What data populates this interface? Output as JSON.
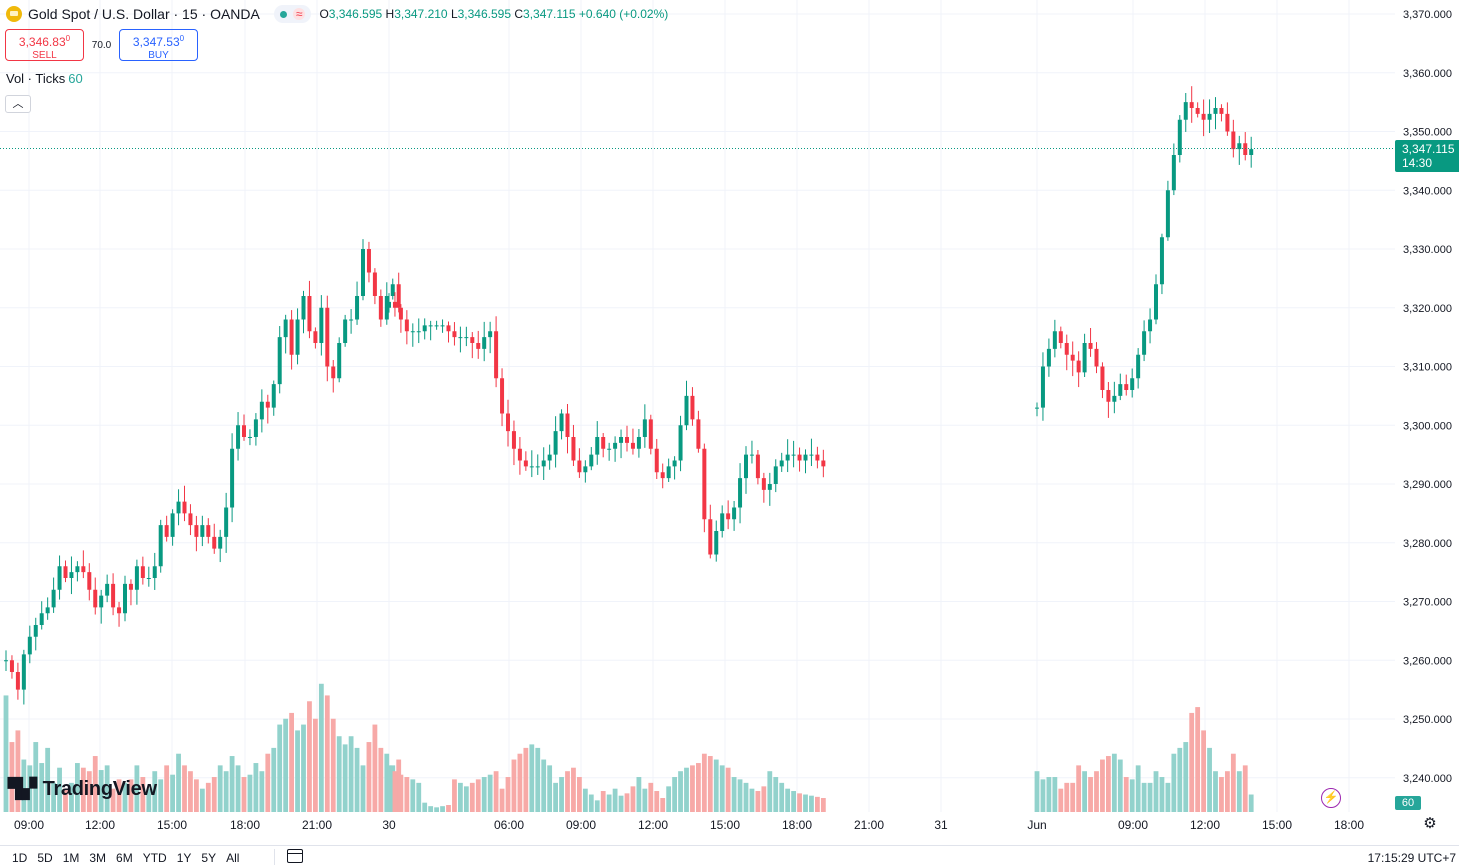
{
  "header": {
    "symbol_title": "Gold Spot / U.S. Dollar · 15 · OANDA",
    "ohlc": {
      "o_label": "O",
      "o": "3,346.595",
      "h_label": "H",
      "h": "3,347.210",
      "l_label": "L",
      "l": "3,346.595",
      "c_label": "C",
      "c": "3,347.115",
      "change": "+0.640 (+0.02%)"
    }
  },
  "trade": {
    "sell_price": "3,346.83",
    "sell_sup": "0",
    "sell_label": "SELL",
    "spread": "70.0",
    "buy_price": "3,347.53",
    "buy_sup": "0",
    "buy_label": "BUY"
  },
  "volume_legend": {
    "name": "Vol · Ticks",
    "period": "60"
  },
  "collapse_icon": "chevron-up-icon",
  "last_price_label": {
    "price": "3,347.115",
    "countdown": "14:30"
  },
  "volume_axis_label": "60",
  "logo_text": "TradingView",
  "bottom_bar": {
    "ranges": [
      "1D",
      "5D",
      "1M",
      "3M",
      "6M",
      "YTD",
      "1Y",
      "5Y",
      "All"
    ],
    "clock": "17:15:29 UTC+7"
  },
  "colors": {
    "up": "#089981",
    "down": "#f23645",
    "vol_up": "#92d2cc",
    "vol_down": "#f7a9a7"
  },
  "chart_data": {
    "type": "candlestick",
    "y_axis": {
      "ylim": [
        3232,
        3372
      ],
      "ticks": [
        "3,370.000",
        "3,360.000",
        "3,350.000",
        "3,340.000",
        "3,330.000",
        "3,320.000",
        "3,310.000",
        "3,300.000",
        "3,290.000",
        "3,280.000",
        "3,270.000",
        "3,260.000",
        "3,250.000",
        "3,240.000"
      ]
    },
    "x_ticks": [
      "09:00",
      "12:00",
      "15:00",
      "18:00",
      "21:00",
      "30",
      "06:00",
      "09:00",
      "12:00",
      "15:00",
      "18:00",
      "21:00",
      "31",
      "Jun",
      "09:00",
      "12:00",
      "15:00",
      "18:00"
    ],
    "grid": true,
    "current_price": 3347.115,
    "volume_max": 175,
    "segments": [
      {
        "session": "May 29 09:00 – May 30 03:00",
        "first_open": 3260,
        "closes": [
          3260,
          3258,
          3255,
          3261,
          3264,
          3266,
          3268,
          3269,
          3272,
          3276,
          3274,
          3275,
          3276,
          3275,
          3272,
          3269,
          3271,
          3273,
          3269,
          3268,
          3273,
          3272,
          3276,
          3274,
          3274,
          3276,
          3283,
          3281,
          3285,
          3287,
          3285,
          3283,
          3281,
          3283,
          3281,
          3279,
          3281,
          3286,
          3296,
          3300,
          3298,
          3298,
          3301,
          3304,
          3303,
          3307,
          3315,
          3318,
          3312,
          3318,
          3322,
          3316,
          3314,
          3320,
          3310,
          3308,
          3314,
          3318,
          3318,
          3322,
          3330,
          3326,
          3322,
          3318,
          3322,
          3324,
          3320
        ],
        "vol": [
          100,
          60,
          70,
          45,
          40,
          60,
          42,
          55,
          25,
          38,
          20,
          25,
          42,
          38,
          35,
          48,
          36,
          40,
          20,
          28,
          25,
          28,
          40,
          30,
          20,
          35,
          28,
          40,
          32,
          50,
          40,
          35,
          28,
          20,
          25,
          30,
          40,
          35,
          48,
          40,
          30,
          32,
          42,
          35,
          50,
          55,
          75,
          80,
          85,
          70,
          75,
          95,
          80,
          110,
          100,
          80,
          65,
          58,
          65,
          55,
          40,
          60,
          75,
          55,
          50,
          40,
          45
        ]
      },
      {
        "session": "May 30 03:00 – May 30 21:45",
        "first_open": 3320,
        "closes": [
          3321,
          3320,
          3318,
          3316,
          3316,
          3316,
          3317,
          3317,
          3317,
          3317,
          3316,
          3315,
          3315,
          3315,
          3314,
          3313,
          3315,
          3316,
          3308,
          3302,
          3299,
          3296,
          3294,
          3293,
          3293,
          3293,
          3294,
          3295,
          3299,
          3302,
          3298,
          3294,
          3292,
          3293,
          3295,
          3298,
          3296,
          3296,
          3297,
          3298,
          3297,
          3296,
          3298,
          3301,
          3296,
          3292,
          3291,
          3293,
          3294,
          3300,
          3305,
          3301,
          3296,
          3284,
          3278,
          3282,
          3285,
          3284,
          3286,
          3291,
          3295,
          3295,
          3291,
          3289,
          3290,
          3293,
          3294,
          3295,
          3295,
          3294,
          3295,
          3295,
          3294,
          3293
        ],
        "vol": [
          40,
          35,
          32,
          30,
          28,
          25,
          8,
          5,
          4,
          5,
          6,
          28,
          25,
          22,
          25,
          28,
          30,
          32,
          35,
          20,
          30,
          45,
          50,
          55,
          58,
          55,
          45,
          40,
          25,
          30,
          35,
          38,
          30,
          20,
          15,
          10,
          18,
          15,
          20,
          14,
          16,
          22,
          30,
          20,
          25,
          18,
          12,
          22,
          30,
          35,
          38,
          40,
          42,
          50,
          48,
          45,
          40,
          38,
          30,
          28,
          25,
          20,
          18,
          22,
          35,
          30,
          25,
          20,
          18,
          16,
          15,
          14,
          13,
          12
        ]
      },
      {
        "session": "Jun 1 – Jun 2 15:00",
        "first_open": 3303,
        "closes": [
          3303,
          3310,
          3313,
          3316,
          3314,
          3312,
          3311,
          3309,
          3314,
          3313,
          3310,
          3306,
          3304,
          3305,
          3307,
          3306,
          3308,
          3312,
          3316,
          3318,
          3324,
          3332,
          3340,
          3346,
          3352,
          3355,
          3354,
          3353,
          3352,
          3353,
          3354,
          3353,
          3350,
          3347,
          3348,
          3346,
          3347
        ],
        "vol": [
          35,
          28,
          30,
          30,
          20,
          25,
          25,
          40,
          35,
          30,
          35,
          45,
          48,
          50,
          45,
          30,
          28,
          40,
          25,
          25,
          35,
          30,
          25,
          50,
          55,
          60,
          85,
          90,
          70,
          55,
          35,
          30,
          35,
          50,
          35,
          40,
          15
        ]
      }
    ]
  }
}
